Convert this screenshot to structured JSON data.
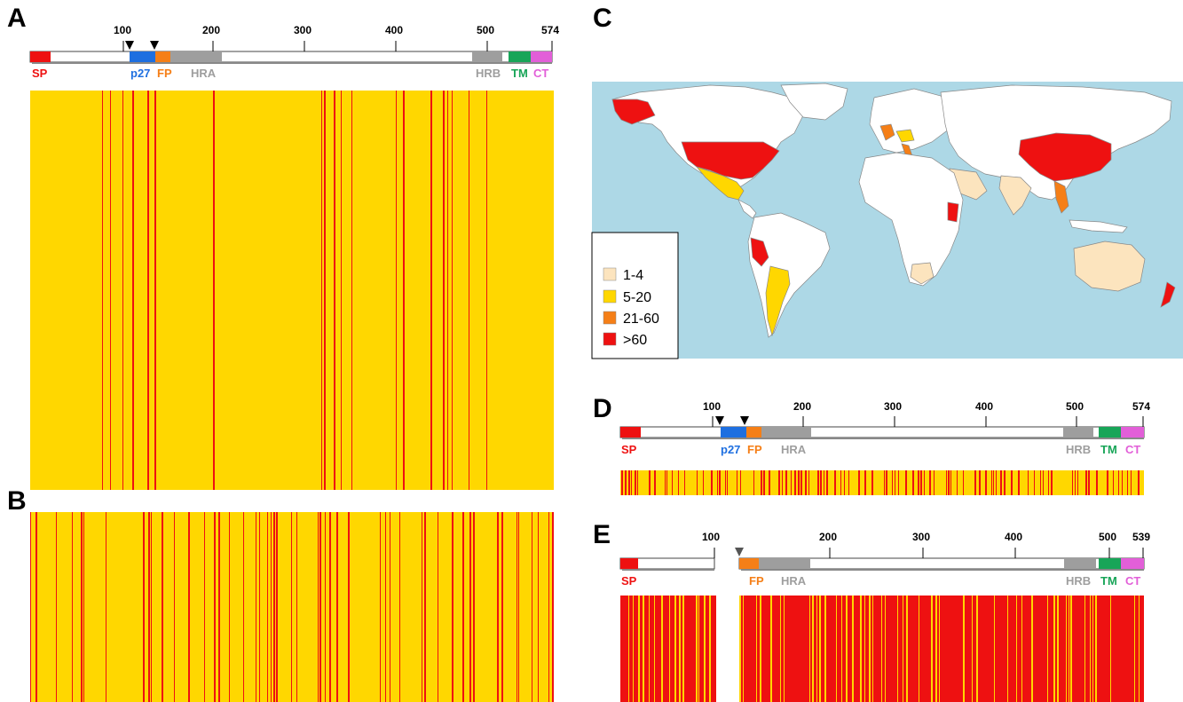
{
  "panels": {
    "A": "A",
    "B": "B",
    "C": "C",
    "D": "D",
    "E": "E"
  },
  "colors": {
    "conserved": "#FFD700",
    "variable": "#EE1111",
    "ocean": "#ADD8E6",
    "land": "#FFFFFF",
    "SP": "#EE1111",
    "p27": "#1E6FE0",
    "FP": "#F57F17",
    "HRA": "#9E9E9E",
    "HRB": "#9E9E9E",
    "TM": "#18A558",
    "CT": "#E25FD8"
  },
  "scheme_full": {
    "ticks": [
      "100",
      "200",
      "300",
      "400",
      "500",
      "574"
    ],
    "domains": [
      "SP",
      "p27",
      "FP",
      "HRA",
      "HRB",
      "TM",
      "CT"
    ]
  },
  "scheme_e": {
    "ticks": [
      "100",
      "200",
      "300",
      "400",
      "500",
      "539"
    ],
    "domains": [
      "SP",
      "FP",
      "HRA",
      "HRB",
      "TM",
      "CT"
    ]
  },
  "map_legend": {
    "items": [
      {
        "label": "1-4",
        "color": "#FCE4BE"
      },
      {
        "label": "5-20",
        "color": "#FFD700"
      },
      {
        "label": "21-60",
        "color": "#F57F17"
      },
      {
        "label": ">60",
        "color": "#EE1111"
      }
    ]
  }
}
